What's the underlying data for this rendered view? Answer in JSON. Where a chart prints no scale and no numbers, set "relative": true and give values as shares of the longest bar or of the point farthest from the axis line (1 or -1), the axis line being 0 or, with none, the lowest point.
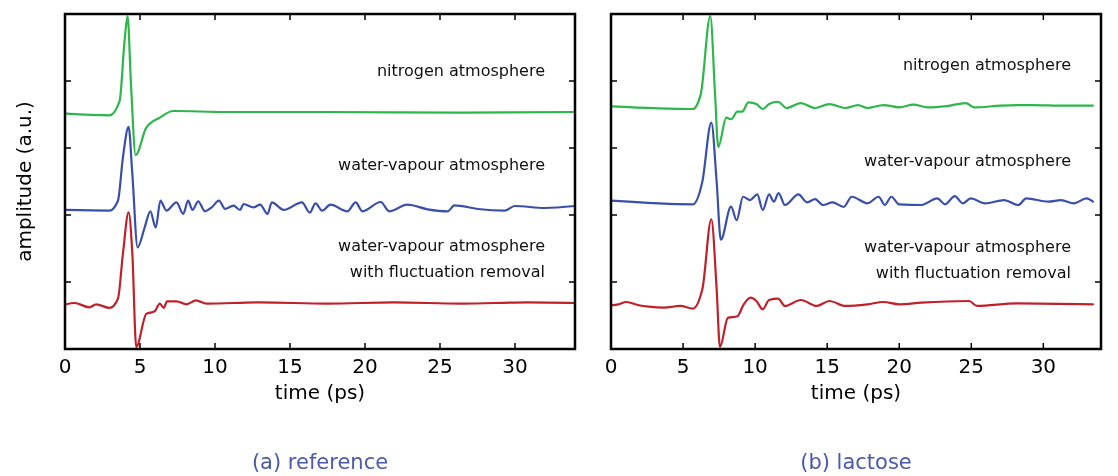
{
  "chart_data": [
    {
      "type": "line",
      "title": "(a) reference",
      "xlabel": "time (ps)",
      "ylabel": "amplitude (a.u.)",
      "relative": true,
      "xlim": [
        0,
        34
      ],
      "xticks": [
        0,
        5,
        10,
        15,
        20,
        25,
        30
      ],
      "grid": false,
      "line_style": "solid",
      "series": [
        {
          "name": "nitrogen atmosphere",
          "color": "#2db64a",
          "x": [
            0.07,
            2.97,
            3.64,
            3.97,
            4.17,
            4.4,
            4.71,
            5.42,
            6.32,
            7.21,
            10.78,
            17.48,
            26.41,
            34.0
          ],
          "values": [
            0.705,
            0.7,
            0.743,
            0.924,
            1.0,
            0.793,
            0.58,
            0.663,
            0.693,
            0.713,
            0.71,
            0.71,
            0.708,
            0.71
          ]
        },
        {
          "name": "water-vapour atmosphere",
          "color": "#3a4fa8",
          "x": [
            0.07,
            2.97,
            3.53,
            3.86,
            4.24,
            4.49,
            4.84,
            5.31,
            5.69,
            6.05,
            6.36,
            6.76,
            7.43,
            7.88,
            8.21,
            8.5,
            8.88,
            9.33,
            9.78,
            10.27,
            10.67,
            11.23,
            11.67,
            11.9,
            12.57,
            13.01,
            13.5,
            13.79,
            14.58,
            15.8,
            16.32,
            16.7,
            17.14,
            17.7,
            18.82,
            19.38,
            19.82,
            21.05,
            21.61,
            22.83,
            24.17,
            25.51,
            25.96,
            27.52,
            29.31,
            29.98,
            31.99,
            34.0
          ],
          "values": [
            0.414,
            0.412,
            0.442,
            0.572,
            0.665,
            0.522,
            0.301,
            0.361,
            0.41,
            0.361,
            0.442,
            0.412,
            0.437,
            0.402,
            0.442,
            0.414,
            0.44,
            0.41,
            0.422,
            0.442,
            0.417,
            0.427,
            0.414,
            0.432,
            0.422,
            0.43,
            0.402,
            0.437,
            0.414,
            0.437,
            0.406,
            0.434,
            0.412,
            0.43,
            0.41,
            0.437,
            0.41,
            0.438,
            0.41,
            0.43,
            0.416,
            0.41,
            0.428,
            0.417,
            0.412,
            0.426,
            0.42,
            0.426
          ]
        },
        {
          "name": "water-vapour atmosphere with fluctuation removal",
          "color": "#c0202a",
          "x": [
            0.07,
            0.63,
            1.63,
            2.08,
            2.97,
            3.53,
            3.86,
            4.24,
            4.49,
            4.75,
            5.42,
            5.98,
            6.32,
            6.58,
            6.81,
            7.43,
            8.1,
            8.73,
            9.44,
            13.01,
            17.48,
            21.94,
            26.41,
            30.87,
            34.0
          ],
          "values": [
            0.129,
            0.133,
            0.12,
            0.129,
            0.118,
            0.146,
            0.281,
            0.407,
            0.281,
            0.0,
            0.1,
            0.108,
            0.131,
            0.118,
            0.138,
            0.138,
            0.129,
            0.141,
            0.131,
            0.135,
            0.131,
            0.135,
            0.131,
            0.135,
            0.133
          ]
        }
      ]
    },
    {
      "type": "line",
      "title": "(b) lactose",
      "xlabel": "time (ps)",
      "relative": true,
      "xlim": [
        0,
        34
      ],
      "xticks": [
        0,
        5,
        10,
        15,
        20,
        25,
        30
      ],
      "grid": false,
      "line_style": "solid",
      "series": [
        {
          "name": "nitrogen atmosphere",
          "color": "#2db64a",
          "x": [
            0,
            5.68,
            6.23,
            6.89,
            7.22,
            7.44,
            8.0,
            8.33,
            8.77,
            9.1,
            9.54,
            10.09,
            10.53,
            10.97,
            11.59,
            12.18,
            13.17,
            14.16,
            15.15,
            16.26,
            17.14,
            17.8,
            18.9,
            20.0,
            20.99,
            21.98,
            23.3,
            24.63,
            25.18,
            27.05,
            29.25,
            31.45,
            33.44
          ],
          "values": [
            0.727,
            0.719,
            0.764,
            1.0,
            0.764,
            0.604,
            0.693,
            0.688,
            0.711,
            0.711,
            0.739,
            0.734,
            0.719,
            0.734,
            0.741,
            0.722,
            0.737,
            0.722,
            0.734,
            0.722,
            0.731,
            0.722,
            0.731,
            0.724,
            0.732,
            0.724,
            0.728,
            0.737,
            0.724,
            0.729,
            0.731,
            0.729,
            0.729
          ]
        },
        {
          "name": "water-vapour atmosphere",
          "color": "#3a4fa8",
          "x": [
            0,
            5.68,
            6.34,
            6.96,
            7.33,
            7.62,
            8.33,
            8.72,
            9.16,
            9.65,
            10.15,
            10.53,
            10.97,
            11.3,
            11.63,
            12.07,
            13.0,
            13.61,
            14.16,
            14.71,
            15.37,
            16.15,
            16.7,
            17.8,
            18.57,
            19.0,
            19.45,
            20.0,
            21.54,
            22.64,
            23.19,
            23.85,
            24.41,
            24.96,
            25.95,
            27.27,
            28.26,
            28.81,
            30.35,
            31.23,
            32.11,
            33.0,
            33.44
          ],
          "values": [
            0.442,
            0.431,
            0.5,
            0.678,
            0.5,
            0.324,
            0.424,
            0.383,
            0.454,
            0.444,
            0.461,
            0.414,
            0.461,
            0.439,
            0.465,
            0.429,
            0.461,
            0.437,
            0.447,
            0.429,
            0.437,
            0.423,
            0.454,
            0.434,
            0.454,
            0.429,
            0.454,
            0.431,
            0.429,
            0.449,
            0.431,
            0.456,
            0.434,
            0.449,
            0.434,
            0.444,
            0.429,
            0.449,
            0.439,
            0.444,
            0.434,
            0.449,
            0.439
          ]
        },
        {
          "name": "water-vapour atmosphere with fluctuation removal",
          "color": "#c0202a",
          "x": [
            0,
            0.51,
            1.06,
            1.94,
            2.6,
            3.7,
            4.8,
            5.68,
            6.34,
            6.96,
            7.33,
            7.56,
            8.11,
            8.77,
            9.21,
            9.69,
            10.09,
            10.53,
            10.97,
            11.59,
            12.07,
            13.17,
            14.27,
            15.15,
            16.26,
            17.8,
            18.9,
            20.0,
            21.54,
            24.85,
            25.4,
            28.15,
            33.44
          ],
          "values": [
            0.126,
            0.129,
            0.136,
            0.126,
            0.122,
            0.119,
            0.124,
            0.116,
            0.175,
            0.386,
            0.175,
            0.0,
            0.088,
            0.093,
            0.129,
            0.149,
            0.139,
            0.114,
            0.142,
            0.146,
            0.124,
            0.142,
            0.124,
            0.139,
            0.124,
            0.129,
            0.136,
            0.129,
            0.134,
            0.139,
            0.124,
            0.132,
            0.129
          ]
        }
      ]
    }
  ]
}
